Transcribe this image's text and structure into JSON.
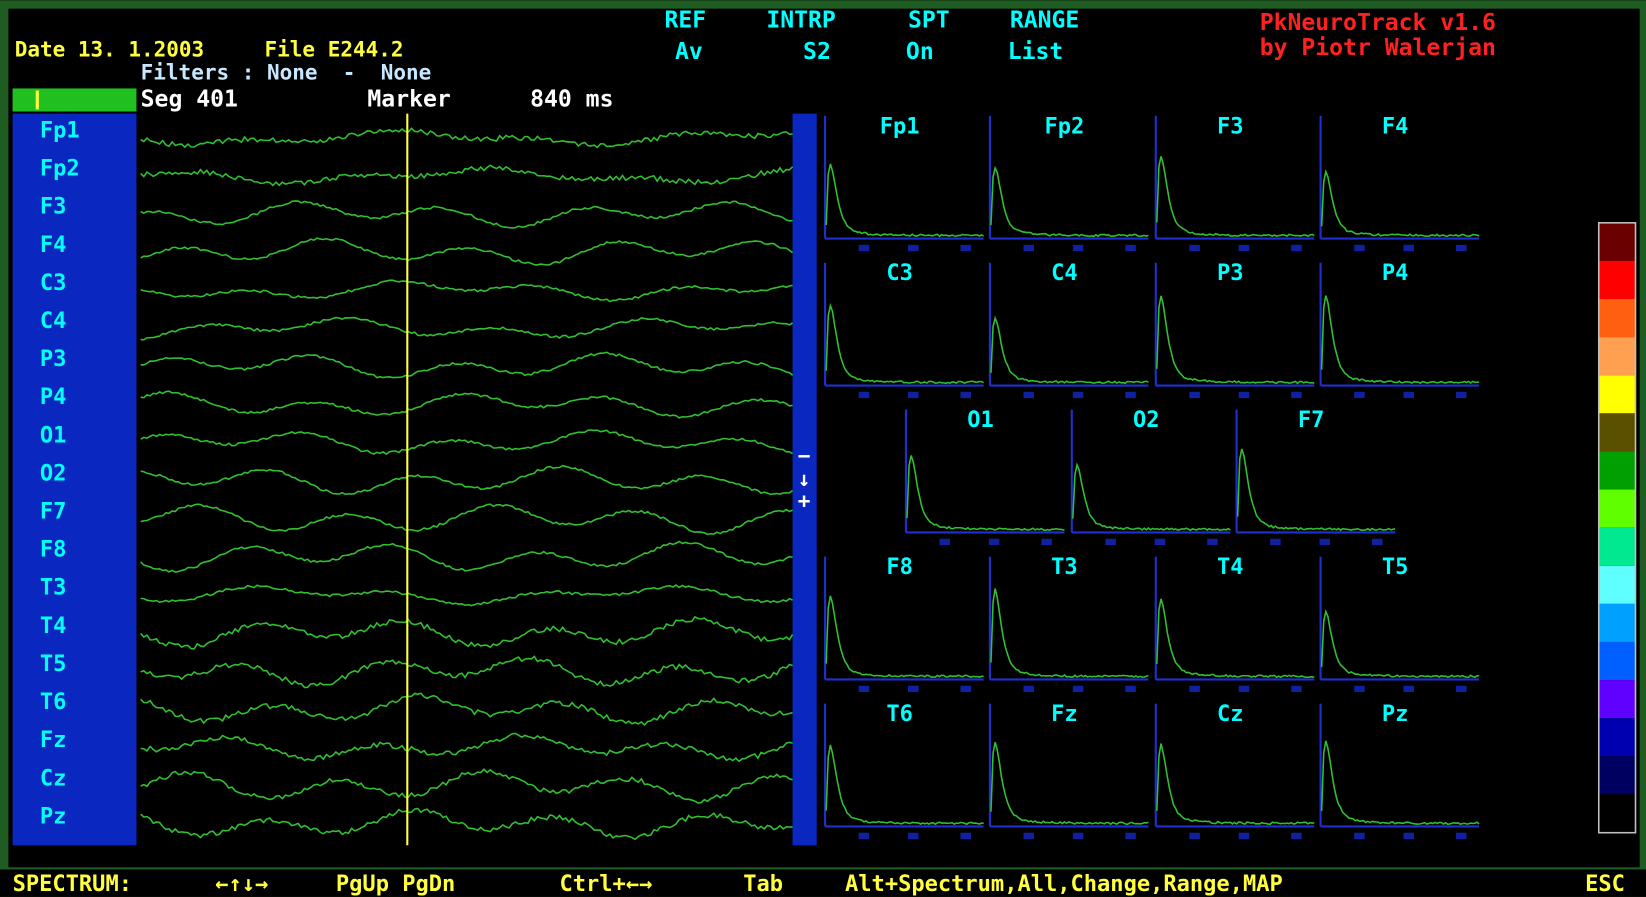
{
  "header": {
    "date": "Date 13. 1.2003",
    "file": "File E244.2",
    "filters": "Filters : None  -  None",
    "segment": "Seg 401",
    "marker": "Marker",
    "marker_time": "840 ms"
  },
  "settings": [
    {
      "label": "REF",
      "value": "Av"
    },
    {
      "label": "INTRP",
      "value": "S2"
    },
    {
      "label": "SPT",
      "value": "On"
    },
    {
      "label": "RANGE",
      "value": "List"
    }
  ],
  "app": {
    "name": "PkNeuroTrack v1.6",
    "author": "by Piotr Walerjan"
  },
  "channels": [
    "Fp1",
    "Fp2",
    "F3",
    "F4",
    "C3",
    "C4",
    "P3",
    "P4",
    "O1",
    "O2",
    "F7",
    "F8",
    "T3",
    "T4",
    "T5",
    "T6",
    "Fz",
    "Cz",
    "Pz"
  ],
  "scroll": {
    "minus": "−",
    "down": "↓",
    "plus": "+"
  },
  "spectra": [
    "Fp1",
    "Fp2",
    "F3",
    "F4",
    "C3",
    "C4",
    "P3",
    "P4",
    "O1",
    "O2",
    "F7",
    "F8",
    "T3",
    "T4",
    "T5",
    "T6",
    "Fz",
    "Cz",
    "Pz"
  ],
  "footer": [
    "SPECTRUM:",
    "←↑↓→",
    "PgUp PgDn",
    "Ctrl+←→",
    "Tab",
    "Alt+Spectrum,All,Change,Range,MAP",
    "ESC"
  ]
}
